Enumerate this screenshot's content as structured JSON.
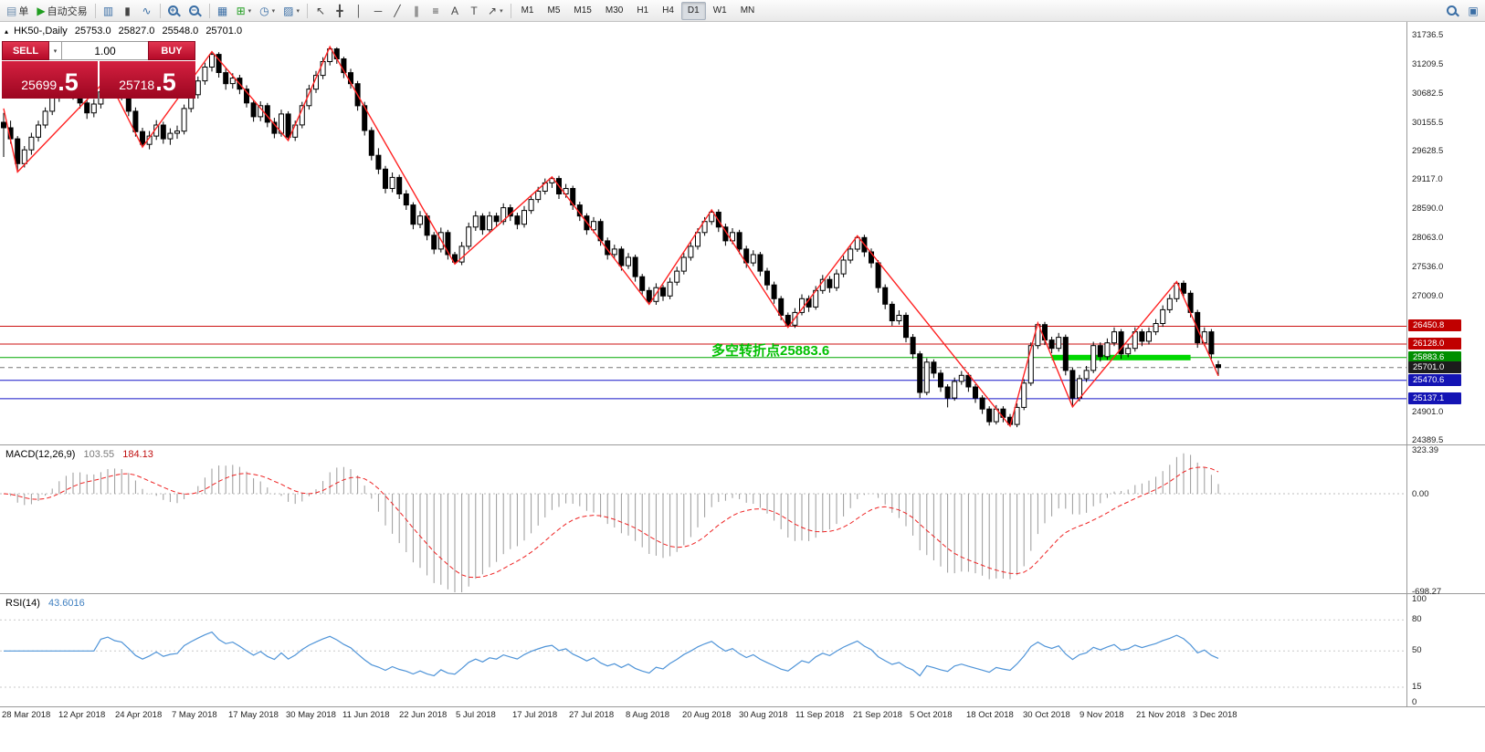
{
  "toolbar": {
    "new_order_label": "单",
    "autotrading_label": "自动交易",
    "timeframes": [
      "M1",
      "M5",
      "M15",
      "M30",
      "H1",
      "H4",
      "D1",
      "W1",
      "MN"
    ],
    "active_timeframe": "D1"
  },
  "icons": {
    "new_order": "▤",
    "autotrading_play": "▶",
    "bar_chart": "▥",
    "candle_chart": "▮",
    "line_chart": "∿",
    "zoom_in_sign": "+",
    "zoom_out_sign": "−",
    "tile_windows": "▦",
    "new_chart": "⊞",
    "periods_clock": "◷",
    "templates": "▨",
    "cursor": "↖",
    "crosshair": "╋",
    "vline": "│",
    "hline": "─",
    "trendline": "╱",
    "channel": "∥",
    "fibonacci": "≡",
    "text_tool": "A",
    "label_tool": "T",
    "shapes": "↗",
    "dropdown": "▾",
    "open_window": "▣"
  },
  "trade_panel": {
    "sell_label": "SELL",
    "buy_label": "BUY",
    "volume": "1.00",
    "sell_price_main": "25699",
    "sell_price_frac": ".5",
    "buy_price_main": "25718",
    "buy_price_frac": ".5"
  },
  "chart_header": {
    "marker": "▴",
    "title": "HK50-,Daily",
    "open": "25753.0",
    "high": "25827.0",
    "low": "25548.0",
    "close": "25701.0"
  },
  "chart_data": {
    "type": "candlestick",
    "symbol": "HK50-",
    "period": "Daily",
    "last_ohlc": [
      25753.0,
      25827.0,
      25548.0,
      25701.0
    ],
    "bid": 25699.5,
    "ask": 25718.5,
    "y_axis_labels": [
      31736.5,
      31209.5,
      30682.5,
      30155.5,
      29628.5,
      29117.0,
      28590.0,
      28063.0,
      27536.0,
      27009.0,
      24901.0,
      24389.5
    ],
    "x_axis_dates": [
      "28 Mar 2018",
      "12 Apr 2018",
      "24 Apr 2018",
      "7 May 2018",
      "17 May 2018",
      "30 May 2018",
      "11 Jun 2018",
      "22 Jun 2018",
      "5 Jul 2018",
      "17 Jul 2018",
      "27 Jul 2018",
      "8 Aug 2018",
      "20 Aug 2018",
      "30 Aug 2018",
      "11 Sep 2018",
      "21 Sep 2018",
      "5 Oct 2018",
      "18 Oct 2018",
      "30 Oct 2018",
      "9 Nov 2018",
      "21 Nov 2018",
      "3 Dec 2018"
    ],
    "candle_colors": {
      "up_fill": "#ffffff",
      "down_fill": "#000000",
      "outline": "#000000"
    },
    "zigzag_color": "#ff2222",
    "levels": [
      {
        "price": 26450.8,
        "color": "#cc1111",
        "style": "solid",
        "tag_bg": "#c00000"
      },
      {
        "price": 26128.0,
        "color": "#cc1111",
        "style": "solid",
        "tag_bg": "#c00000"
      },
      {
        "price": 25883.6,
        "color": "#00a800",
        "style": "solid",
        "tag_bg": "#008f00"
      },
      {
        "price": 25701.0,
        "color": "#777777",
        "style": "dashed",
        "tag_bg": "#1c1c1c"
      },
      {
        "price": 25470.6,
        "color": "#1616c8",
        "style": "solid",
        "tag_bg": "#1414b4"
      },
      {
        "price": 25137.1,
        "color": "#1616c8",
        "style": "solid",
        "tag_bg": "#1414b4"
      }
    ],
    "highlight_segment": {
      "price": 25883.6,
      "from_index": 151,
      "to_index": 171,
      "color": "#00d800",
      "thickness": 6
    },
    "annotation": {
      "text": "多空转折点25883.6",
      "color": "#00c000",
      "anchor_index": 102,
      "price": 25883.6
    },
    "zigzag": [
      [
        0,
        30400
      ],
      [
        2,
        29250
      ],
      [
        15,
        30950
      ],
      [
        20,
        29700
      ],
      [
        30,
        31430
      ],
      [
        41,
        29820
      ],
      [
        47,
        31520
      ],
      [
        65,
        27580
      ],
      [
        79,
        29160
      ],
      [
        93,
        26850
      ],
      [
        102,
        28560
      ],
      [
        113,
        26430
      ],
      [
        123,
        28090
      ],
      [
        145,
        24640
      ],
      [
        149,
        26510
      ],
      [
        154,
        24990
      ],
      [
        169,
        27260
      ],
      [
        175,
        25550
      ]
    ],
    "macd": {
      "label": "MACD(12,26,9)",
      "value_main": "103.55",
      "value_signal": "184.13",
      "params": [
        12,
        26,
        9
      ],
      "axis": [
        323.39,
        0.0,
        -698.27
      ],
      "histogram_color": "#9a9a9a",
      "signal_color": "#ee2222"
    },
    "rsi": {
      "label": "RSI(14)",
      "value": "43.6016",
      "period": 14,
      "axis": [
        100,
        80,
        50,
        15,
        0
      ],
      "levels": [
        80,
        50,
        15
      ],
      "line_color": "#4f94d8"
    },
    "candles": [
      [
        30150,
        30320,
        29520,
        30050
      ],
      [
        30050,
        30180,
        29760,
        29850
      ],
      [
        29850,
        29900,
        29250,
        29400
      ],
      [
        29400,
        29720,
        29330,
        29650
      ],
      [
        29650,
        29960,
        29560,
        29880
      ],
      [
        29880,
        30180,
        29800,
        30100
      ],
      [
        30100,
        30420,
        30040,
        30350
      ],
      [
        30350,
        30680,
        30280,
        30600
      ],
      [
        30600,
        30850,
        30520,
        30780
      ],
      [
        30780,
        30880,
        30620,
        30750
      ],
      [
        30750,
        30830,
        30560,
        30680
      ],
      [
        30680,
        30740,
        30400,
        30500
      ],
      [
        30500,
        30560,
        30210,
        30320
      ],
      [
        30320,
        30570,
        30240,
        30480
      ],
      [
        30480,
        30790,
        30400,
        30700
      ],
      [
        30700,
        30950,
        30630,
        30850
      ],
      [
        30850,
        30910,
        30600,
        30700
      ],
      [
        30700,
        30820,
        30550,
        30640
      ],
      [
        30640,
        30690,
        30260,
        30350
      ],
      [
        30350,
        30420,
        29890,
        29980
      ],
      [
        29980,
        30050,
        29700,
        29750
      ],
      [
        29750,
        29990,
        29660,
        29900
      ],
      [
        29900,
        30190,
        29830,
        30100
      ],
      [
        30100,
        30160,
        29760,
        29850
      ],
      [
        29850,
        30040,
        29740,
        29950
      ],
      [
        29950,
        30090,
        29850,
        29990
      ],
      [
        29990,
        30470,
        29930,
        30400
      ],
      [
        30400,
        30740,
        30330,
        30650
      ],
      [
        30650,
        30980,
        30580,
        30900
      ],
      [
        30900,
        31230,
        30830,
        31150
      ],
      [
        31150,
        31430,
        31070,
        31380
      ],
      [
        31380,
        31420,
        30960,
        31050
      ],
      [
        31050,
        31140,
        30740,
        30850
      ],
      [
        30850,
        31040,
        30760,
        30950
      ],
      [
        30950,
        31010,
        30660,
        30750
      ],
      [
        30750,
        30820,
        30420,
        30500
      ],
      [
        30500,
        30560,
        30160,
        30250
      ],
      [
        30250,
        30530,
        30170,
        30450
      ],
      [
        30450,
        30500,
        30060,
        30150
      ],
      [
        30150,
        30230,
        29860,
        29950
      ],
      [
        29950,
        30380,
        29890,
        30300
      ],
      [
        30300,
        30350,
        29820,
        29880
      ],
      [
        29880,
        30180,
        29810,
        30100
      ],
      [
        30100,
        30520,
        30040,
        30450
      ],
      [
        30450,
        30830,
        30380,
        30750
      ],
      [
        30750,
        31080,
        30680,
        31000
      ],
      [
        31000,
        31330,
        30930,
        31250
      ],
      [
        31250,
        31520,
        31180,
        31480
      ],
      [
        31480,
        31510,
        31210,
        31300
      ],
      [
        31300,
        31340,
        30950,
        31050
      ],
      [
        31050,
        31120,
        30760,
        30850
      ],
      [
        30850,
        30900,
        30360,
        30450
      ],
      [
        30450,
        30520,
        29910,
        30000
      ],
      [
        30000,
        30060,
        29460,
        29550
      ],
      [
        29550,
        29680,
        29210,
        29300
      ],
      [
        29300,
        29360,
        28860,
        28950
      ],
      [
        28950,
        29240,
        28880,
        29150
      ],
      [
        29150,
        29200,
        28760,
        28850
      ],
      [
        28850,
        28920,
        28560,
        28650
      ],
      [
        28650,
        28700,
        28210,
        28300
      ],
      [
        28300,
        28540,
        28230,
        28450
      ],
      [
        28450,
        28500,
        28010,
        28100
      ],
      [
        28100,
        28160,
        27760,
        27850
      ],
      [
        27850,
        28240,
        27790,
        28150
      ],
      [
        28150,
        28200,
        27660,
        27750
      ],
      [
        27750,
        27800,
        27580,
        27615
      ],
      [
        27615,
        27980,
        27560,
        27900
      ],
      [
        27900,
        28330,
        27840,
        28250
      ],
      [
        28250,
        28540,
        28180,
        28450
      ],
      [
        28450,
        28500,
        28110,
        28200
      ],
      [
        28200,
        28530,
        28140,
        28450
      ],
      [
        28450,
        28510,
        28260,
        28350
      ],
      [
        28350,
        28680,
        28290,
        28600
      ],
      [
        28600,
        28660,
        28360,
        28450
      ],
      [
        28450,
        28510,
        28210,
        28300
      ],
      [
        28300,
        28630,
        28240,
        28550
      ],
      [
        28550,
        28830,
        28490,
        28750
      ],
      [
        28750,
        28980,
        28690,
        28900
      ],
      [
        28900,
        29130,
        28840,
        29050
      ],
      [
        29050,
        29160,
        28960,
        29130
      ],
      [
        29130,
        29180,
        28760,
        28850
      ],
      [
        28850,
        29030,
        28780,
        28950
      ],
      [
        28950,
        29000,
        28560,
        28650
      ],
      [
        28650,
        28710,
        28360,
        28450
      ],
      [
        28450,
        28500,
        28110,
        28200
      ],
      [
        28200,
        28430,
        28140,
        28350
      ],
      [
        28350,
        28400,
        27910,
        28000
      ],
      [
        28000,
        28060,
        27660,
        27750
      ],
      [
        27750,
        27930,
        27690,
        27850
      ],
      [
        27850,
        27900,
        27460,
        27550
      ],
      [
        27550,
        27780,
        27490,
        27700
      ],
      [
        27700,
        27750,
        27260,
        27350
      ],
      [
        27350,
        27400,
        27010,
        27100
      ],
      [
        27100,
        27160,
        26850,
        26900
      ],
      [
        26900,
        27230,
        26840,
        27150
      ],
      [
        27150,
        27200,
        26910,
        27000
      ],
      [
        27000,
        27330,
        26940,
        27250
      ],
      [
        27250,
        27530,
        27190,
        27450
      ],
      [
        27450,
        27780,
        27390,
        27700
      ],
      [
        27700,
        27980,
        27640,
        27900
      ],
      [
        27900,
        28230,
        27840,
        28150
      ],
      [
        28150,
        28430,
        28090,
        28350
      ],
      [
        28350,
        28560,
        28290,
        28520
      ],
      [
        28520,
        28570,
        28160,
        28250
      ],
      [
        28250,
        28310,
        27910,
        28000
      ],
      [
        28000,
        28230,
        27940,
        28150
      ],
      [
        28150,
        28200,
        27760,
        27850
      ],
      [
        27850,
        27910,
        27510,
        27600
      ],
      [
        27600,
        27830,
        27540,
        27750
      ],
      [
        27750,
        27800,
        27360,
        27450
      ],
      [
        27450,
        27510,
        27110,
        27200
      ],
      [
        27200,
        27260,
        26860,
        26950
      ],
      [
        26950,
        27000,
        26560,
        26650
      ],
      [
        26650,
        26700,
        26430,
        26470
      ],
      [
        26470,
        26780,
        26420,
        26700
      ],
      [
        26700,
        27030,
        26650,
        26950
      ],
      [
        26950,
        27010,
        26710,
        26800
      ],
      [
        26800,
        27180,
        26750,
        27100
      ],
      [
        27100,
        27380,
        27040,
        27300
      ],
      [
        27300,
        27360,
        27060,
        27150
      ],
      [
        27150,
        27480,
        27090,
        27400
      ],
      [
        27400,
        27730,
        27340,
        27650
      ],
      [
        27650,
        27930,
        27590,
        27850
      ],
      [
        27850,
        28090,
        27800,
        28060
      ],
      [
        28060,
        28110,
        27710,
        27800
      ],
      [
        27800,
        27860,
        27510,
        27600
      ],
      [
        27600,
        27650,
        27060,
        27150
      ],
      [
        27150,
        27210,
        26760,
        26850
      ],
      [
        26850,
        26900,
        26460,
        26550
      ],
      [
        26550,
        26740,
        26480,
        26650
      ],
      [
        26650,
        26700,
        26160,
        26250
      ],
      [
        26250,
        26310,
        25860,
        25950
      ],
      [
        25950,
        26000,
        25150,
        25250
      ],
      [
        25250,
        25870,
        25200,
        25800
      ],
      [
        25800,
        25850,
        25510,
        25600
      ],
      [
        25600,
        25660,
        25260,
        25350
      ],
      [
        25350,
        25400,
        24980,
        25150
      ],
      [
        25150,
        25520,
        25100,
        25450
      ],
      [
        25450,
        25640,
        25390,
        25560
      ],
      [
        25560,
        25610,
        25260,
        25350
      ],
      [
        25350,
        25400,
        25060,
        25150
      ],
      [
        25150,
        25200,
        24860,
        24950
      ],
      [
        24950,
        25000,
        24650,
        24720
      ],
      [
        24720,
        25020,
        24670,
        24950
      ],
      [
        24950,
        25000,
        24710,
        24800
      ],
      [
        24800,
        24860,
        24640,
        24670
      ],
      [
        24670,
        25050,
        24620,
        24980
      ],
      [
        24980,
        25490,
        24930,
        25420
      ],
      [
        25420,
        26160,
        25370,
        26100
      ],
      [
        26100,
        26510,
        26040,
        26480
      ],
      [
        26480,
        26530,
        26110,
        26200
      ],
      [
        26200,
        26260,
        25960,
        26050
      ],
      [
        26050,
        26330,
        25990,
        26250
      ],
      [
        26250,
        26300,
        25560,
        25650
      ],
      [
        25650,
        25700,
        24990,
        25150
      ],
      [
        25150,
        25570,
        25090,
        25500
      ],
      [
        25500,
        25730,
        25440,
        25650
      ],
      [
        25650,
        26170,
        25600,
        26100
      ],
      [
        26100,
        26160,
        25810,
        25900
      ],
      [
        25900,
        26230,
        25840,
        26150
      ],
      [
        26150,
        26430,
        26090,
        26350
      ],
      [
        26350,
        26400,
        25860,
        25950
      ],
      [
        25950,
        26130,
        25890,
        26050
      ],
      [
        26050,
        26430,
        25990,
        26350
      ],
      [
        26350,
        26400,
        26090,
        26180
      ],
      [
        26180,
        26430,
        26120,
        26350
      ],
      [
        26350,
        26580,
        26290,
        26500
      ],
      [
        26500,
        26830,
        26440,
        26750
      ],
      [
        26750,
        27030,
        26690,
        26950
      ],
      [
        26950,
        27260,
        26890,
        27230
      ],
      [
        27230,
        27280,
        26960,
        27050
      ],
      [
        27050,
        27100,
        26610,
        26700
      ],
      [
        26700,
        26750,
        26060,
        26150
      ],
      [
        26150,
        26430,
        26090,
        26350
      ],
      [
        26350,
        26400,
        25860,
        25950
      ],
      [
        25753,
        25827,
        25548,
        25701
      ]
    ]
  }
}
